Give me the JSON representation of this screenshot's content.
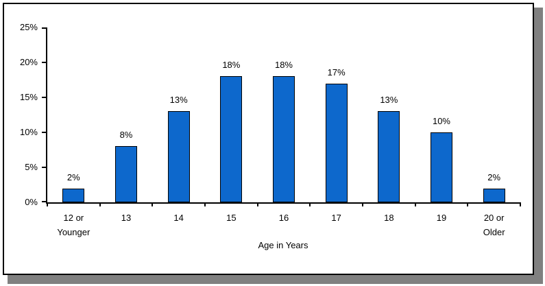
{
  "frame": {
    "background": "#FFFFFF",
    "border_color": "#000000",
    "shadow_color": "#808080"
  },
  "chart_data": {
    "type": "bar",
    "title": "",
    "xlabel": "Age in Years",
    "ylabel": "",
    "categories": [
      "12 or\nYounger",
      "13",
      "14",
      "15",
      "16",
      "17",
      "18",
      "19",
      "20 or\nOlder"
    ],
    "values": [
      2,
      8,
      13,
      18,
      18,
      17,
      13,
      10,
      2
    ],
    "bar_labels": [
      "2%",
      "8%",
      "13%",
      "18%",
      "18%",
      "17%",
      "13%",
      "10%",
      "2%"
    ],
    "ylim": [
      0,
      25
    ],
    "ytick_step": 5,
    "ytick_labels": [
      "0%",
      "5%",
      "10%",
      "15%",
      "20%",
      "25%"
    ],
    "grid": false,
    "legend": false,
    "bar_color": "#0D68CC",
    "bar_border_color": "#000000",
    "axis_color": "#000000"
  }
}
